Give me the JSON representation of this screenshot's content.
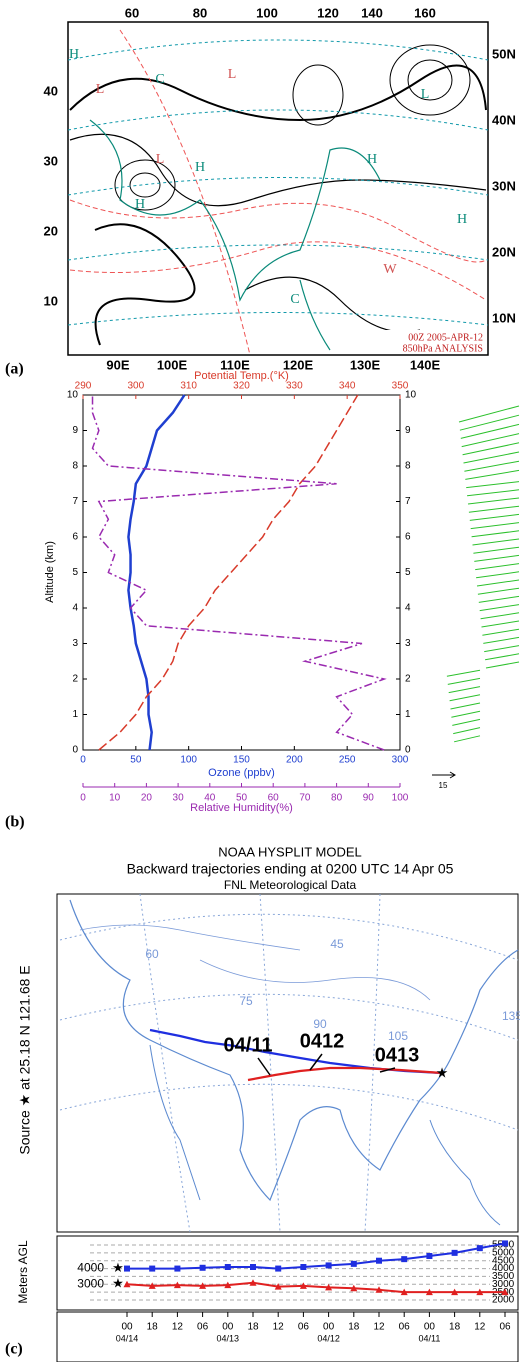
{
  "panel_a": {
    "panel_label": "(a)",
    "top_labels": [
      "60",
      "80",
      "100",
      "120",
      "140",
      "160"
    ],
    "left_labels": [
      "40",
      "30",
      "20",
      "10"
    ],
    "right_labels": [
      "50N",
      "40N",
      "30N",
      "20N",
      "10N"
    ],
    "bottom_labels": [
      "90E",
      "100E",
      "110E",
      "120E",
      "130E",
      "140E"
    ],
    "centers": [
      "H",
      "L",
      "L",
      "L",
      "H",
      "H",
      "H",
      "C",
      "C",
      "H",
      "W",
      "L"
    ],
    "annotation": [
      "00Z  2005-APR-12",
      "850hPa ANALYSIS"
    ]
  },
  "chart_data": {
    "type": "line",
    "panel_label": "(b)",
    "ylabel": "Altitude (km)",
    "ylim": [
      0,
      10
    ],
    "yticks": [
      0,
      1,
      2,
      3,
      4,
      5,
      6,
      7,
      8,
      9,
      10
    ],
    "axes": [
      {
        "label": "Ozone (ppbv)",
        "color": "#1f3fd0",
        "lim": [
          0,
          300
        ],
        "ticks": [
          0,
          50,
          100,
          150,
          200,
          250,
          300
        ]
      },
      {
        "label": "Potential Temp.(°K)",
        "color": "#d83a2a",
        "lim": [
          290,
          350
        ],
        "ticks": [
          290,
          300,
          310,
          320,
          330,
          340,
          350
        ]
      },
      {
        "label": "Relative Humidity(%)",
        "color": "#9a2ab0",
        "lim": [
          0,
          100
        ],
        "ticks": [
          0,
          10,
          20,
          30,
          40,
          50,
          60,
          70,
          80,
          90,
          100
        ]
      }
    ],
    "y": [
      0,
      0.5,
      1,
      1.5,
      2,
      2.5,
      3,
      3.5,
      4,
      4.5,
      5,
      5.5,
      6,
      6.5,
      7,
      7.5,
      8,
      8.5,
      9,
      9.5,
      10
    ],
    "series": [
      {
        "axis": 0,
        "color": "#1f3fd0",
        "values": [
          63,
          65,
          62,
          62,
          60,
          55,
          50,
          48,
          45,
          43,
          45,
          45,
          43,
          45,
          48,
          50,
          60,
          65,
          70,
          85,
          96
        ]
      },
      {
        "axis": 1,
        "color": "#d83a2a",
        "values": [
          293,
          297,
          300,
          302,
          305,
          307,
          308,
          310,
          313,
          315,
          318,
          321,
          324,
          326,
          329,
          331,
          334,
          336,
          338,
          340,
          342
        ]
      },
      {
        "axis": 2,
        "color": "#9a2ab0",
        "values": [
          95,
          80,
          85,
          80,
          95,
          70,
          88,
          20,
          15,
          20,
          8,
          10,
          5,
          8,
          5,
          80,
          8,
          3,
          5,
          3,
          3
        ]
      }
    ],
    "wind_scale_label": "15"
  },
  "panel_c": {
    "panel_label": "(c)",
    "title": "NOAA HYSPLIT MODEL",
    "subtitle": "Backward trajectories ending at 0200 UTC 14 Apr 05",
    "data_source": "FNL  Meteorological Data",
    "source_label": "Source ★ at 25.18 N 121.68 E",
    "grid_labels": [
      "60",
      "75",
      "90",
      "105",
      "135",
      "45"
    ],
    "trajectory_labels": [
      "04/11",
      "0412",
      "0413"
    ],
    "ylabel": "Meters AGL",
    "ylim": [
      1750,
      5750
    ],
    "yticks": [
      5500,
      5000,
      4500,
      4000,
      3500,
      3000,
      2500,
      2000
    ],
    "start_labels": [
      "4000",
      "3000"
    ],
    "times": [
      "00",
      "18",
      "12",
      "06",
      "00",
      "18",
      "12",
      "06",
      "00",
      "18",
      "12",
      "06",
      "00",
      "18",
      "12",
      "06"
    ],
    "dates": [
      "04/14",
      "04/13",
      "04/12",
      "04/11"
    ],
    "series": [
      {
        "color": "#1f2fe0",
        "values": [
          4000,
          4000,
          4000,
          4050,
          4100,
          4100,
          4000,
          4100,
          4200,
          4300,
          4500,
          4600,
          4800,
          5000,
          5300,
          5600
        ]
      },
      {
        "color": "#e02020",
        "values": [
          3000,
          2900,
          2950,
          2900,
          2950,
          3100,
          2850,
          2900,
          2800,
          2750,
          2650,
          2500,
          2500,
          2500,
          2500,
          2500
        ]
      }
    ]
  }
}
